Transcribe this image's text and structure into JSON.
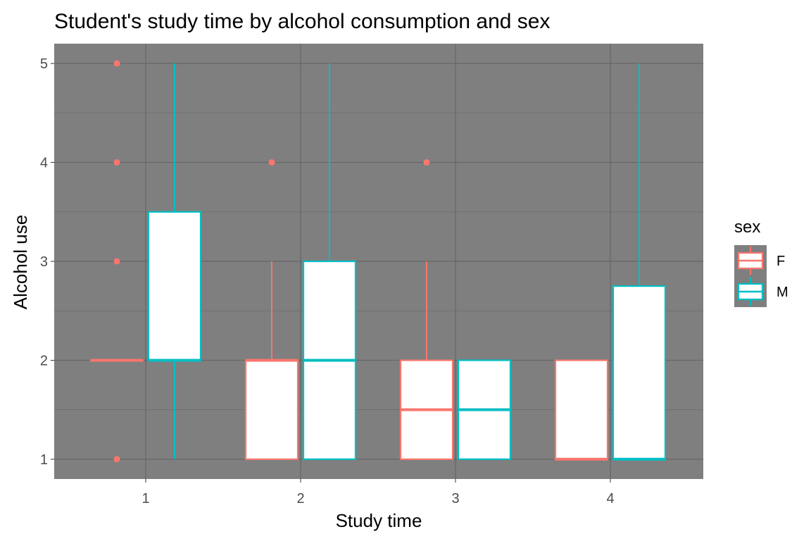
{
  "chart_data": {
    "type": "boxplot",
    "title": "Student's study time by alcohol consumption and sex",
    "xlabel": "Study time",
    "ylabel": "Alcohol use",
    "categories": [
      "1",
      "2",
      "3",
      "4"
    ],
    "y_ticks": [
      1,
      2,
      3,
      4,
      5
    ],
    "ylim": [
      0.8,
      5.2
    ],
    "grid": true,
    "panel_background": "#7f7f7f",
    "grid_color": "#666666",
    "legend": {
      "title": "sex",
      "position": "right"
    },
    "series": [
      {
        "name": "F",
        "color": "#F8766D",
        "boxes": [
          {
            "category": "1",
            "min": 2,
            "q1": 2,
            "median": 2,
            "q3": 2,
            "max": 2,
            "outliers": [
              1,
              3,
              4,
              5
            ]
          },
          {
            "category": "2",
            "min": 1,
            "q1": 1,
            "median": 2,
            "q3": 2,
            "max": 3,
            "outliers": [
              4
            ]
          },
          {
            "category": "3",
            "min": 1,
            "q1": 1,
            "median": 1.5,
            "q3": 2,
            "max": 3,
            "outliers": [
              4
            ]
          },
          {
            "category": "4",
            "min": 1,
            "q1": 1,
            "median": 1,
            "q3": 2,
            "max": 2,
            "outliers": []
          }
        ]
      },
      {
        "name": "M",
        "color": "#00BFC4",
        "boxes": [
          {
            "category": "1",
            "min": 1,
            "q1": 2,
            "median": 2,
            "q3": 3.5,
            "max": 5,
            "outliers": []
          },
          {
            "category": "2",
            "min": 1,
            "q1": 1,
            "median": 2,
            "q3": 3,
            "max": 5,
            "outliers": []
          },
          {
            "category": "3",
            "min": 1,
            "q1": 1,
            "median": 1.5,
            "q3": 2,
            "max": 2,
            "outliers": []
          },
          {
            "category": "4",
            "min": 1,
            "q1": 1,
            "median": 1,
            "q3": 2.75,
            "max": 5,
            "outliers": []
          }
        ]
      }
    ]
  }
}
